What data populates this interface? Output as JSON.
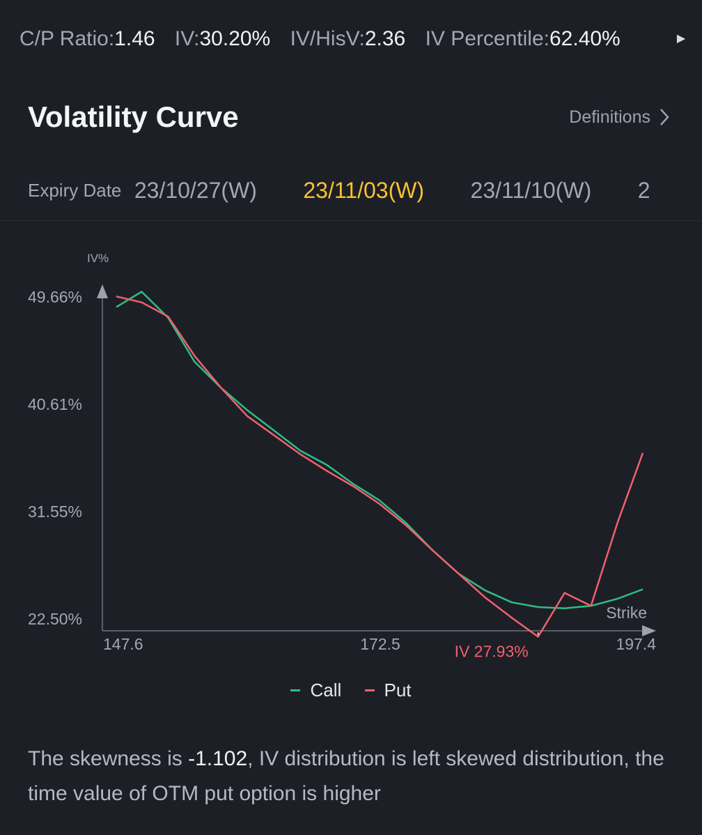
{
  "stats": [
    {
      "label": "C/P Ratio:",
      "value": "1.46"
    },
    {
      "label": "IV:",
      "value": "30.20%"
    },
    {
      "label": "IV/HisV:",
      "value": "2.36"
    },
    {
      "label": "IV Percentile:",
      "value": "62.40%"
    }
  ],
  "title": "Volatility Curve",
  "definitions_label": "Definitions",
  "expiry": {
    "label": "Expiry Date",
    "tabs": [
      "23/10/27(W)",
      "23/11/03(W)",
      "23/11/10(W)",
      "2"
    ],
    "active_index": 1
  },
  "chart_data": {
    "type": "line",
    "ylabel": "IV%",
    "xlabel": "Strike",
    "y_ticks": [
      "49.66%",
      "40.61%",
      "31.55%",
      "22.50%"
    ],
    "x_ticks": [
      "147.6",
      "172.5",
      "197.4"
    ],
    "ylim": [
      22.5,
      49.66
    ],
    "xlim": [
      147.6,
      197.4
    ],
    "series": [
      {
        "name": "Call",
        "color": "#2ebd85",
        "x": [
          147.6,
          150,
          152.5,
          155,
          157.5,
          160,
          162.5,
          165,
          167.5,
          170,
          172.5,
          175,
          177.5,
          180,
          182.5,
          185,
          187.5,
          190,
          192.5,
          195,
          197.4
        ],
        "y": [
          48.8,
          50.1,
          47.9,
          44.2,
          42.0,
          40.1,
          38.4,
          36.7,
          35.5,
          33.9,
          32.5,
          30.6,
          28.3,
          26.3,
          24.9,
          23.9,
          23.5,
          23.4,
          23.6,
          24.2,
          25.0
        ]
      },
      {
        "name": "Put",
        "color": "#f0616d",
        "x": [
          147.6,
          150,
          152.5,
          155,
          157.5,
          160,
          162.5,
          165,
          167.5,
          170,
          172.5,
          175,
          177.5,
          180,
          182.5,
          185,
          187.5,
          190,
          192.5,
          195,
          197.4
        ],
        "y": [
          49.7,
          49.2,
          48.0,
          44.7,
          42.0,
          39.6,
          38.0,
          36.4,
          35.0,
          33.7,
          32.2,
          30.4,
          28.3,
          26.3,
          24.3,
          22.6,
          21.0,
          24.7,
          23.6,
          30.6,
          36.5
        ]
      }
    ],
    "annotation": {
      "text": "IV 27.93%",
      "x": 187.5
    }
  },
  "legend": [
    "Call",
    "Put"
  ],
  "skew": {
    "prefix": "The skewness is ",
    "value": "-1.102",
    "suffix": ", IV distribution is left  skewed distribution, the time value of OTM put option is higher"
  }
}
